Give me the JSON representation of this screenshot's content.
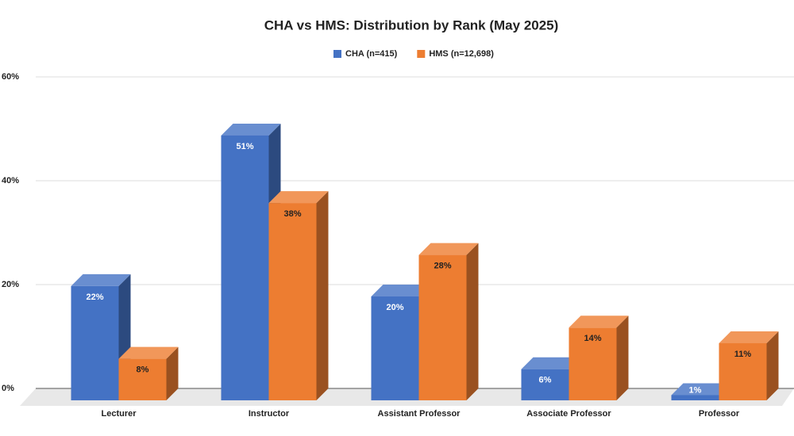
{
  "chart_data": {
    "type": "bar",
    "title": "CHA vs HMS: Distribution by Rank (May 2025)",
    "categories": [
      "Lecturer",
      "Instructor",
      "Assistant Professor",
      "Associate Professor",
      "Professor"
    ],
    "series": [
      {
        "name": "CHA (n=415)",
        "color": "#4472c4",
        "values": [
          22,
          51,
          20,
          6,
          1
        ],
        "value_labels": [
          "22%",
          "51%",
          "20%",
          "6%",
          "1%"
        ]
      },
      {
        "name": "HMS (n=12,698)",
        "color": "#ed7d31",
        "values": [
          8,
          38,
          28,
          14,
          11
        ],
        "value_labels": [
          "8%",
          "38%",
          "28%",
          "14%",
          "11%"
        ]
      }
    ],
    "ylim": [
      0,
      60
    ],
    "yticks": [
      {
        "value": 0,
        "label": "0%"
      },
      {
        "value": 20,
        "label": "20%"
      },
      {
        "value": 40,
        "label": "40%"
      },
      {
        "value": 60,
        "label": "60%"
      }
    ],
    "grid": true
  }
}
